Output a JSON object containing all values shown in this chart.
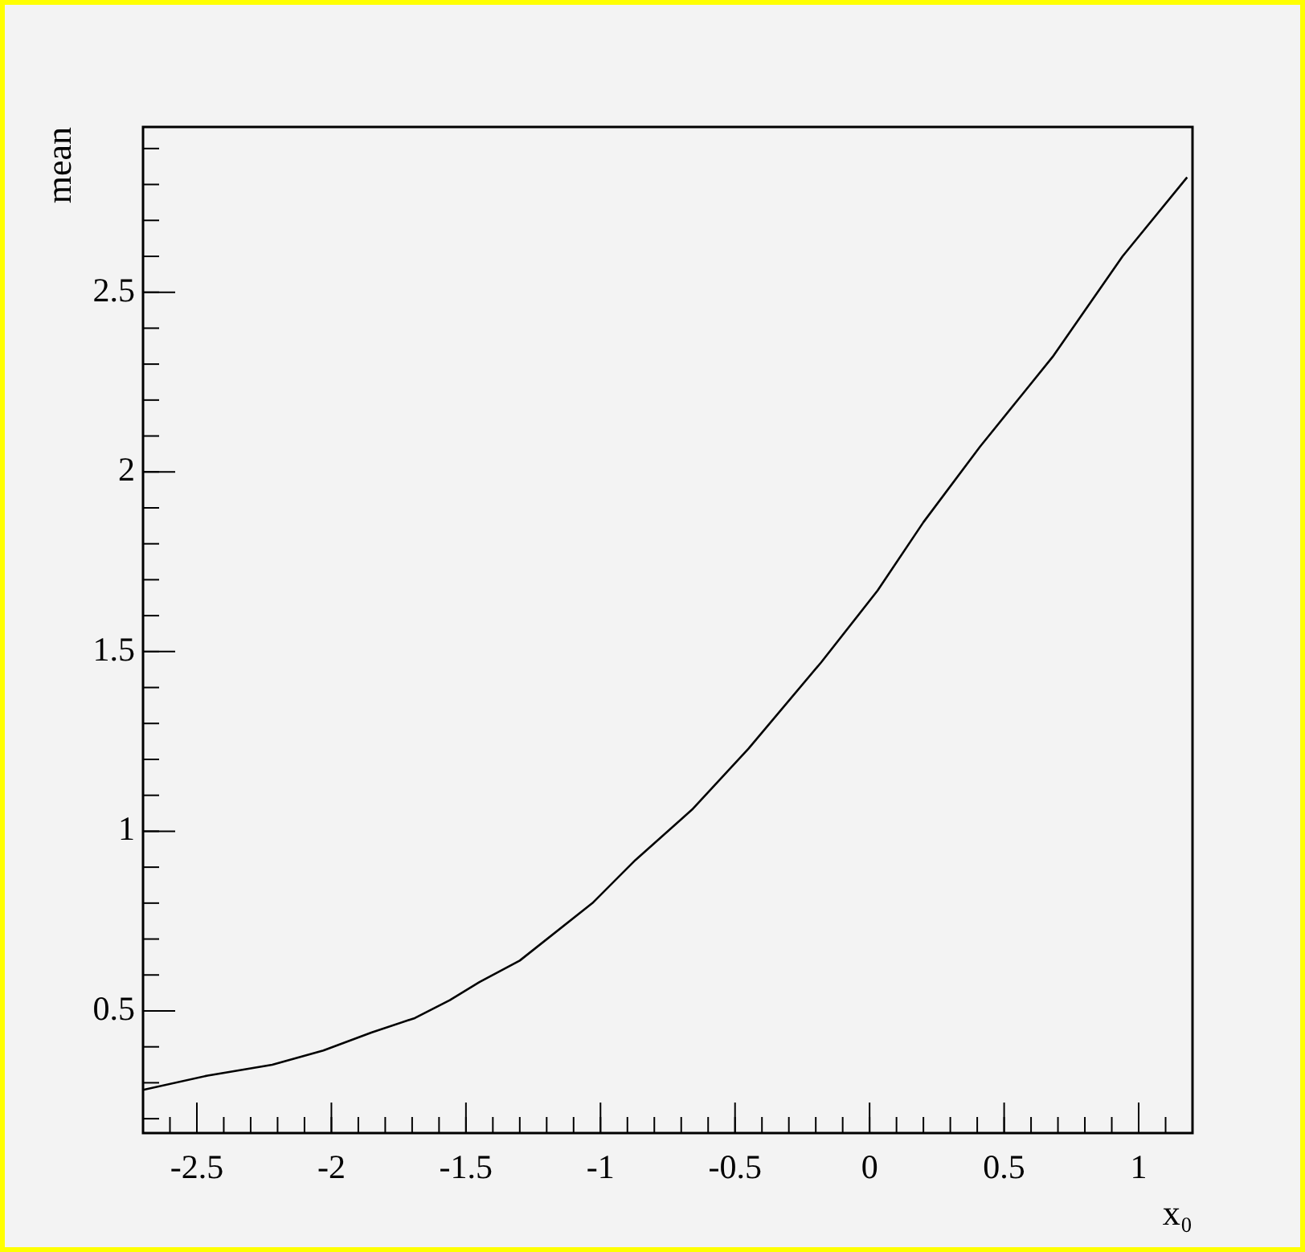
{
  "chart_data": {
    "type": "line",
    "xlabel": "x₀",
    "ylabel": "mean",
    "xlim": [
      -2.7,
      1.2
    ],
    "ylim": [
      0.16,
      2.96
    ],
    "xticks": [
      -2.5,
      -2,
      -1.5,
      -1,
      -0.5,
      0,
      0.5,
      1
    ],
    "yticks": [
      0.5,
      1,
      1.5,
      2,
      2.5
    ],
    "grid": false,
    "legend": false,
    "marker": "none",
    "line_style": "solid",
    "series": [
      {
        "color": "#000000",
        "x": [
          -2.7,
          -2.46,
          -2.22,
          -2.03,
          -1.85,
          -1.69,
          -1.56,
          -1.45,
          -1.3,
          -1.03,
          -0.87,
          -0.66,
          -0.45,
          -0.18,
          0.03,
          0.2,
          0.41,
          0.68,
          0.94,
          1.18
        ],
        "values": [
          0.28,
          0.32,
          0.35,
          0.39,
          0.44,
          0.48,
          0.53,
          0.58,
          0.64,
          0.8,
          0.92,
          1.06,
          1.23,
          1.47,
          1.67,
          1.86,
          2.07,
          2.32,
          2.6,
          2.82
        ]
      }
    ]
  }
}
